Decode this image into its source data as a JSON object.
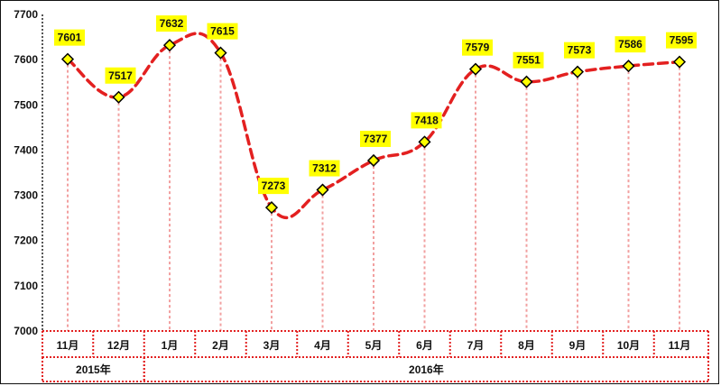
{
  "chart_data": {
    "type": "line",
    "title": "",
    "xlabel": "",
    "ylabel": "",
    "ylim": [
      7000,
      7700
    ],
    "yticks": [
      7000,
      7100,
      7200,
      7300,
      7400,
      7500,
      7600,
      7700
    ],
    "categories": [
      "11月",
      "12月",
      "1月",
      "2月",
      "3月",
      "4月",
      "5月",
      "6月",
      "7月",
      "8月",
      "9月",
      "10月",
      "11月"
    ],
    "category_groups": [
      {
        "label": "2015年",
        "span": 2
      },
      {
        "label": "2016年",
        "span": 11
      }
    ],
    "series": [
      {
        "values": [
          7601,
          7517,
          7632,
          7615,
          7273,
          7312,
          7377,
          7418,
          7579,
          7551,
          7573,
          7586,
          7595
        ]
      }
    ],
    "line_style": "dashed-smooth",
    "marker": "diamond",
    "colors": {
      "line": "#e32020",
      "marker_fill": "#ffff00",
      "marker_stroke": "#000000",
      "label_bg": "#ffff00",
      "dropline": "#f2a0a0",
      "category_grid": "#e32020",
      "axis": "#555555"
    },
    "grid": false,
    "legend": "none"
  }
}
